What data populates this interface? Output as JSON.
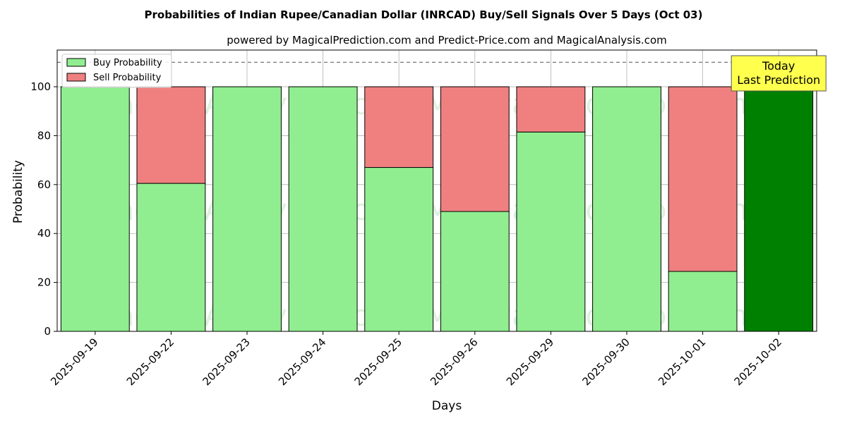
{
  "chart_data": {
    "type": "bar",
    "stacked": true,
    "title": "Probabilities of Indian Rupee/Canadian Dollar (INRCAD) Buy/Sell Signals Over 5 Days (Oct 03)",
    "subtitle": "powered by MagicalPrediction.com and Predict-Price.com and MagicalAnalysis.com",
    "xlabel": "Days",
    "ylabel": "Probability",
    "ylim": [
      0,
      115
    ],
    "yticks": [
      0,
      20,
      40,
      60,
      80,
      100
    ],
    "reference_line": 110,
    "grid": true,
    "legend_position": "top-left",
    "categories": [
      "2025-09-19",
      "2025-09-22",
      "2025-09-23",
      "2025-09-24",
      "2025-09-25",
      "2025-09-26",
      "2025-09-29",
      "2025-09-30",
      "2025-10-01",
      "2025-10-02"
    ],
    "series": [
      {
        "name": "Buy Probability",
        "color": "#90ee90",
        "values": [
          100,
          60.5,
          100,
          100,
          67,
          49,
          81.5,
          100,
          24.5,
          100
        ]
      },
      {
        "name": "Sell Probability",
        "color": "#f08080",
        "values": [
          0,
          39.5,
          0,
          0,
          33,
          51,
          18.5,
          0,
          75.5,
          0
        ]
      }
    ],
    "highlight": {
      "category": "2025-10-02",
      "color": "#008000",
      "annotation_lines": [
        "Today",
        "Last Prediction"
      ],
      "annotation_bg": "#ffff4d"
    },
    "watermarks": [
      "MagicalAnalysis.com",
      "MagicalPrediction.com"
    ]
  }
}
